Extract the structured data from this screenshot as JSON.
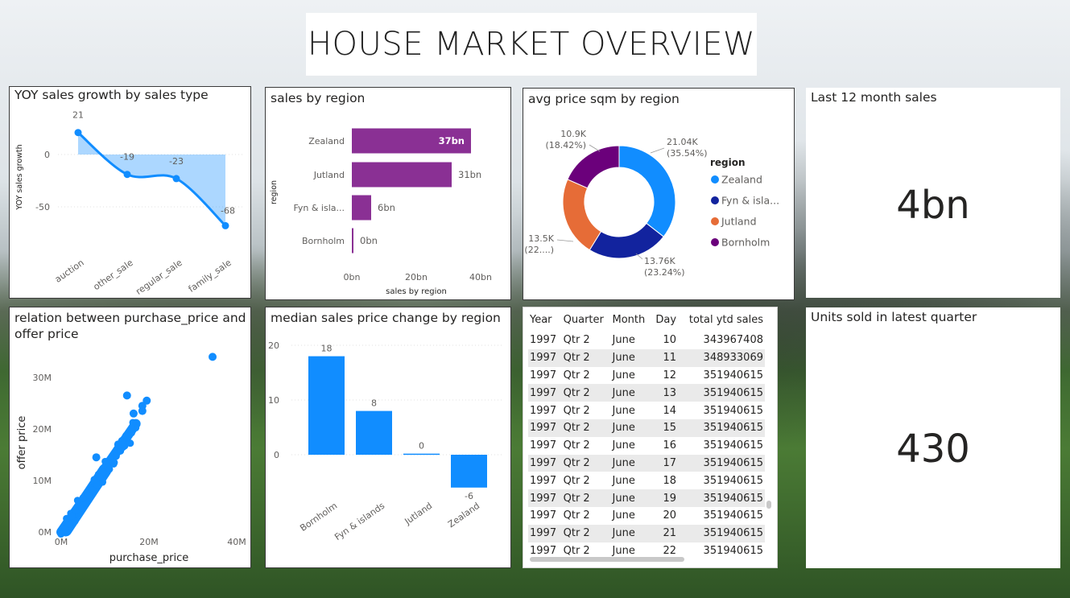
{
  "page": {
    "title": "HOUSE MARKET OVERVIEW"
  },
  "charts": {
    "yoy": {
      "title": "YOY sales growth by sales type",
      "ylabel": "YOY sales growth",
      "yticks": [
        "0",
        "-50"
      ],
      "color": "#118DFF"
    },
    "region_sales": {
      "title": "sales by region",
      "ylabel": "region",
      "xlabel": "sales by region",
      "xticks": [
        "0bn",
        "20bn",
        "40bn"
      ],
      "color": "#8A3094"
    },
    "donut": {
      "title": "avg price sqm by region",
      "legend_title": "region",
      "legend": [
        {
          "label": "Zealand",
          "color": "#118DFF"
        },
        {
          "label": "Fyn & isla...",
          "color": "#12239E"
        },
        {
          "label": "Jutland",
          "color": "#E66C37"
        },
        {
          "label": "Bornholm",
          "color": "#6B007B"
        }
      ],
      "labels": [
        {
          "value": "21.04K",
          "pct": "(35.54%)"
        },
        {
          "value": "13.76K",
          "pct": "(23.24%)"
        },
        {
          "value": "13.5K",
          "pct": "(22....)"
        },
        {
          "value": "10.9K",
          "pct": "(18.42%)"
        }
      ]
    },
    "scatter": {
      "title_line1": "relation between purchase_price and",
      "title_line2": "offer price",
      "xlabel": "purchase_price",
      "ylabel": "offer price",
      "xticks": [
        "0M",
        "20M",
        "40M"
      ],
      "yticks": [
        "0M",
        "10M",
        "20M",
        "30M"
      ],
      "color": "#118DFF"
    },
    "median": {
      "title": "median sales price change by region",
      "yticks": [
        "20",
        "10",
        "0"
      ],
      "color": "#118DFF"
    }
  },
  "cards": {
    "last12": {
      "title": "Last 12 month sales",
      "value": "4bn"
    },
    "units": {
      "title": "Units sold in latest quarter",
      "value": "430"
    }
  },
  "table": {
    "headers": [
      "Year",
      "Quarter",
      "Month",
      "Day",
      "total ytd sales"
    ],
    "rows": [
      [
        "1997",
        "Qtr 2",
        "June",
        "10",
        "343967408"
      ],
      [
        "1997",
        "Qtr 2",
        "June",
        "11",
        "348933069"
      ],
      [
        "1997",
        "Qtr 2",
        "June",
        "12",
        "351940615"
      ],
      [
        "1997",
        "Qtr 2",
        "June",
        "13",
        "351940615"
      ],
      [
        "1997",
        "Qtr 2",
        "June",
        "14",
        "351940615"
      ],
      [
        "1997",
        "Qtr 2",
        "June",
        "15",
        "351940615"
      ],
      [
        "1997",
        "Qtr 2",
        "June",
        "16",
        "351940615"
      ],
      [
        "1997",
        "Qtr 2",
        "June",
        "17",
        "351940615"
      ],
      [
        "1997",
        "Qtr 2",
        "June",
        "18",
        "351940615"
      ],
      [
        "1997",
        "Qtr 2",
        "June",
        "19",
        "351940615"
      ],
      [
        "1997",
        "Qtr 2",
        "June",
        "20",
        "351940615"
      ],
      [
        "1997",
        "Qtr 2",
        "June",
        "21",
        "351940615"
      ],
      [
        "1997",
        "Qtr 2",
        "June",
        "22",
        "351940615"
      ]
    ]
  },
  "chart_data": [
    {
      "type": "area",
      "title": "YOY sales growth by sales type",
      "categories": [
        "auction",
        "other_sale",
        "regular_sale",
        "family_sale"
      ],
      "values": [
        21,
        -19,
        -23,
        -68
      ],
      "ylabel": "YOY sales growth",
      "ylim": [
        -75,
        30
      ]
    },
    {
      "type": "bar",
      "orientation": "horizontal",
      "title": "sales by region",
      "categories": [
        "Zealand",
        "Jutland",
        "Fyn & isla...",
        "Bornholm"
      ],
      "values": [
        37,
        31,
        6,
        0.5
      ],
      "value_labels": [
        "37bn",
        "31bn",
        "6bn",
        "0bn"
      ],
      "xlabel": "sales by region",
      "ylabel": "region",
      "xlim": [
        0,
        40
      ]
    },
    {
      "type": "pie",
      "donut": true,
      "title": "avg price sqm by region",
      "categories": [
        "Zealand",
        "Fyn & islands",
        "Jutland",
        "Bornholm"
      ],
      "values": [
        21.04,
        13.76,
        13.5,
        10.9
      ],
      "percent": [
        35.54,
        23.24,
        22.8,
        18.42
      ]
    },
    {
      "type": "scatter",
      "title": "relation between purchase_price and offer price",
      "xlabel": "purchase_price",
      "ylabel": "offer price",
      "xlim": [
        0,
        40
      ],
      "ylim": [
        0,
        35
      ],
      "points": [
        [
          34.5,
          34
        ],
        [
          15,
          26.5
        ],
        [
          19.5,
          25.5
        ],
        [
          18.5,
          24.5
        ],
        [
          18.5,
          23.5
        ],
        [
          16.5,
          23
        ],
        [
          8,
          14.5
        ],
        [
          12,
          13.5
        ],
        [
          14,
          16.5
        ],
        [
          16,
          20
        ],
        [
          15,
          18.5
        ],
        [
          13,
          17
        ]
      ],
      "trend": {
        "x": [
          0,
          17
        ],
        "y": [
          0,
          21
        ]
      }
    },
    {
      "type": "bar",
      "title": "median sales price change by region",
      "categories": [
        "Bornholm",
        "Fyn & islands",
        "Jutland",
        "Zealand"
      ],
      "values": [
        18,
        8,
        0.2,
        -6
      ],
      "value_labels": [
        "18",
        "8",
        "0",
        "-6"
      ],
      "ylim": [
        -8,
        22
      ]
    }
  ]
}
